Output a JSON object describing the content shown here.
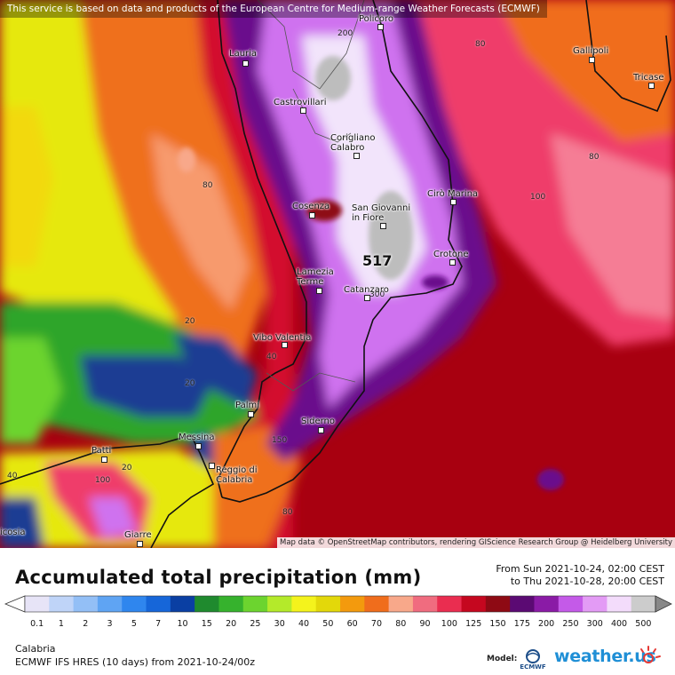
{
  "header": {
    "notice": "This service is based on data and products of the European Centre for Medium-range Weather Forecasts (ECMWF)"
  },
  "map": {
    "attribution": "Map data © OpenStreetMap contributors, rendering GIScience Research Group @ Heidelberg University",
    "max_value": "517",
    "cities": [
      "Policoro",
      "Lauria",
      "Castrovillari",
      "Gallipoli",
      "Tricase",
      "Corigliano Calabro",
      "Cirò Marina",
      "Cosenza",
      "San Giovanni in Fiore",
      "Crotone",
      "Lamezia Terme",
      "Catanzaro",
      "Vibo Valentia",
      "Palmi",
      "Siderno",
      "Messina",
      "Patti",
      "Reggio di Calabria",
      "Giarre",
      "icosia"
    ],
    "contour_labels": [
      "200",
      "80",
      "80",
      "80",
      "100",
      "300",
      "20",
      "40",
      "20",
      "150",
      "20",
      "100",
      "40",
      "80"
    ],
    "colors": {
      "sea_dark_red": "#a80010",
      "purple": "#6a0d8c",
      "light_purple": "#cf72ef",
      "white_core": "#f2e4fb",
      "grey_core": "#bdbdbd",
      "pink": "#ef3c6a",
      "red": "#d3112e",
      "orange": "#ef6f1a",
      "salmon": "#f79a6d",
      "yellow": "#e6e80c",
      "green": "#2fa52a",
      "dark_blue": "#1a3d93"
    }
  },
  "footer": {
    "title": "Accumulated total precipitation (mm)",
    "period_from": "From Sun 2021-10-24, 02:00 CEST",
    "period_to": "to Thu 2021-10-28, 20:00 CEST",
    "region": "Calabria",
    "model": "ECMWF IFS HRES (10 days)  from  2021-10-24/00z",
    "model_label": "Model:",
    "ecmwf_logo_text": "ECMWF",
    "brand": "weather.us"
  },
  "legend": {
    "ticks": [
      "0.1",
      "1",
      "2",
      "3",
      "5",
      "7",
      "10",
      "15",
      "20",
      "25",
      "30",
      "40",
      "50",
      "60",
      "70",
      "80",
      "90",
      "100",
      "125",
      "150",
      "175",
      "200",
      "250",
      "300",
      "400",
      "500"
    ],
    "colors": [
      "#e7e4f7",
      "#bfd4f8",
      "#93bff6",
      "#5fa4f3",
      "#2f86ee",
      "#1666d9",
      "#0a3fa3",
      "#1f8a2e",
      "#36b22d",
      "#6cd42f",
      "#b4ea2a",
      "#f4f31c",
      "#e3d80a",
      "#f39a0d",
      "#f06d1c",
      "#f8a88a",
      "#f06c7f",
      "#ea2d50",
      "#c5071f",
      "#8e0a14",
      "#5b0a73",
      "#8a1ba6",
      "#c45ae8",
      "#e39bf5",
      "#f3dcfb",
      "#cccccc"
    ]
  }
}
